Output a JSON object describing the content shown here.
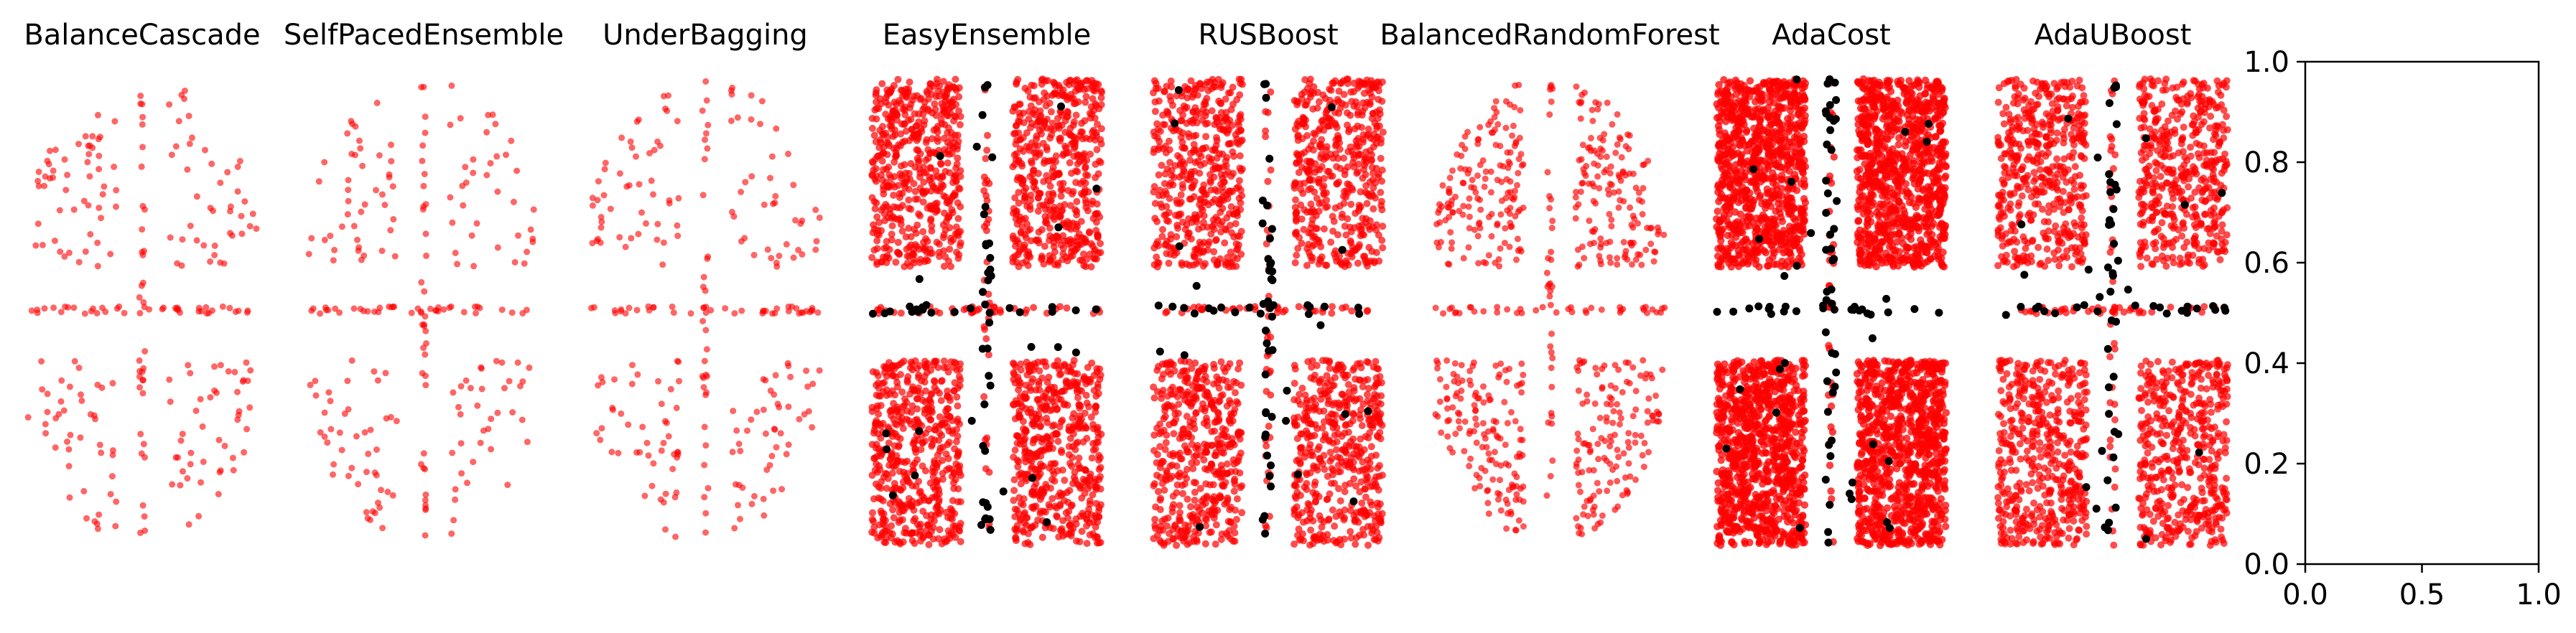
{
  "chart_data": [
    {
      "type": "scatter",
      "title": "BalanceCascade",
      "pattern": "sparse",
      "markers": "red",
      "density": 1.0
    },
    {
      "type": "scatter",
      "title": "SelfPacedEnsemble",
      "pattern": "sparse",
      "markers": "red",
      "density": 0.9
    },
    {
      "type": "scatter",
      "title": "UnderBagging",
      "pattern": "sparse",
      "markers": "red",
      "density": 1.0
    },
    {
      "type": "scatter",
      "title": "EasyEnsemble",
      "pattern": "dense",
      "markers": "red+black",
      "density": 1.0
    },
    {
      "type": "scatter",
      "title": "RUSBoost",
      "pattern": "dense",
      "markers": "red+black",
      "density": 0.9
    },
    {
      "type": "scatter",
      "title": "BalancedRandomForest",
      "pattern": "medium",
      "markers": "red",
      "density": 1.0
    },
    {
      "type": "scatter",
      "title": "AdaCost",
      "pattern": "full",
      "markers": "red+black",
      "density": 1.0
    },
    {
      "type": "scatter",
      "title": "AdaUBoost",
      "pattern": "dense",
      "markers": "red+black",
      "density": 0.9
    },
    {
      "type": "scatter",
      "title": "",
      "empty_axes": true,
      "xlim": [
        0,
        1
      ],
      "ylim": [
        0,
        1
      ],
      "xticks": [
        "0.0",
        "0.5",
        "1.0"
      ],
      "yticks": [
        "0.0",
        "0.2",
        "0.4",
        "0.6",
        "0.8",
        "1.0"
      ]
    }
  ],
  "colors": {
    "red": "#ff0000",
    "black": "#000000",
    "axis": "#000000"
  }
}
